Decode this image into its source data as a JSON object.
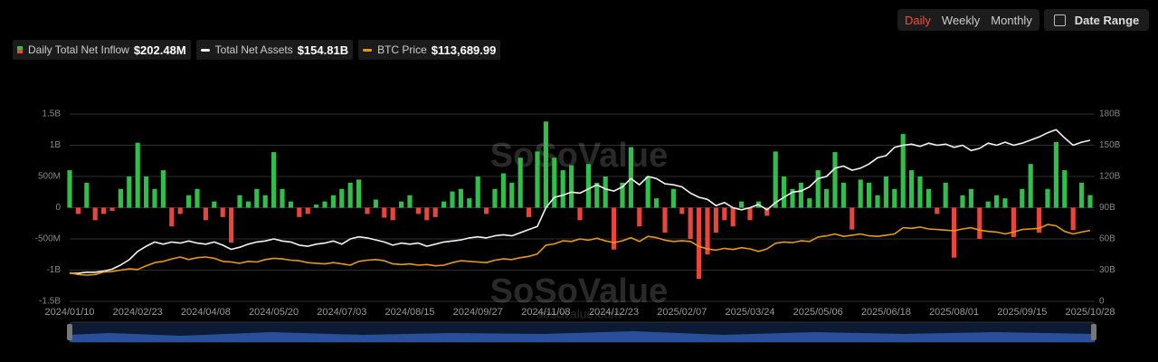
{
  "controls": {
    "periods": [
      "Daily",
      "Weekly",
      "Monthly"
    ],
    "active_period": 0,
    "date_range": "Date Range"
  },
  "watermark": [
    "SoSoValue",
    "SoSoValue",
    "sosovalue.com"
  ],
  "chart_data": {
    "type": "bar-line",
    "categories": [
      "2024/01/10",
      null,
      null,
      null,
      null,
      null,
      null,
      null,
      "2024/02/23",
      null,
      null,
      null,
      null,
      null,
      null,
      null,
      "2024/04/08",
      null,
      null,
      null,
      null,
      null,
      null,
      null,
      "2024/05/20",
      null,
      null,
      null,
      null,
      null,
      null,
      null,
      "2024/07/03",
      null,
      null,
      null,
      null,
      null,
      null,
      null,
      "2024/08/15",
      null,
      null,
      null,
      null,
      null,
      null,
      null,
      "2024/09/27",
      null,
      null,
      null,
      null,
      null,
      null,
      null,
      "2024/11/08",
      null,
      null,
      null,
      null,
      null,
      null,
      null,
      "2024/12/23",
      null,
      null,
      null,
      null,
      null,
      null,
      null,
      "2025/02/07",
      null,
      null,
      null,
      null,
      null,
      null,
      null,
      "2025/03/24",
      null,
      null,
      null,
      null,
      null,
      null,
      null,
      "2025/05/06",
      null,
      null,
      null,
      null,
      null,
      null,
      null,
      "2025/06/18",
      null,
      null,
      null,
      null,
      null,
      null,
      null,
      "2025/08/01",
      null,
      null,
      null,
      null,
      null,
      null,
      null,
      "2025/09/15",
      null,
      null,
      null,
      null,
      null,
      null,
      null,
      "2025/10/28"
    ],
    "ylim": [
      -1500000000.0,
      1500000000.0
    ],
    "yticks": [
      {
        "value": -1500000000.0,
        "label": "-1.5B"
      },
      {
        "value": -1000000000.0,
        "label": "-1B"
      },
      {
        "value": -500000000.0,
        "label": "-500M"
      },
      0,
      {
        "value": 500000000.0,
        "label": "500M"
      },
      {
        "value": 1000000000.0,
        "label": "1B"
      },
      {
        "value": 1500000000.0,
        "label": "1.5B"
      }
    ],
    "y2lim": [
      0,
      180000000000.0
    ],
    "y2ticks": [
      0,
      {
        "value": 30000000000.0,
        "label": "30B"
      },
      {
        "value": 60000000000.0,
        "label": "60B"
      },
      {
        "value": 90000000000.0,
        "label": "90B"
      },
      {
        "value": 120000000000.0,
        "label": "120B"
      },
      {
        "value": 150000000000.0,
        "label": "150B"
      },
      {
        "value": 180000000000.0,
        "label": "180B"
      }
    ],
    "y3lim": [
      0,
      300000
    ],
    "grid": true,
    "series": [
      {
        "name": "Daily Total Net Inflow",
        "latest_label": "$202.48M",
        "type": "bar",
        "axis": "y",
        "color": "#2fbf4a",
        "negative_color": "#e8463a",
        "values": [
          600000000.0,
          -100000000.0,
          400000000.0,
          -200000000.0,
          -100000000.0,
          -50000000.0,
          300000000.0,
          500000000.0,
          1040000000.0,
          500000000.0,
          300000000.0,
          600000000.0,
          -300000000.0,
          -100000000.0,
          200000000.0,
          300000000.0,
          -200000000.0,
          100000000.0,
          -150000000.0,
          -560000000.0,
          200000000.0,
          100000000.0,
          300000000.0,
          200000000.0,
          890000000.0,
          300000000.0,
          100000000.0,
          -150000000.0,
          -100000000.0,
          50000000.0,
          100000000.0,
          200000000.0,
          300000000.0,
          400000000.0,
          450000000.0,
          -100000000.0,
          130000000.0,
          -160000000.0,
          -200000000.0,
          100000000.0,
          200000000.0,
          -100000000.0,
          -200000000.0,
          -150000000.0,
          100000000.0,
          260000000.0,
          300000000.0,
          150000000.0,
          500000000.0,
          -100000000.0,
          300000000.0,
          550000000.0,
          400000000.0,
          800000000.0,
          -150000000.0,
          900000000.0,
          1380000000.0,
          800000000.0,
          600000000.0,
          680000000.0,
          -200000000.0,
          700000000.0,
          400000000.0,
          500000000.0,
          -670000000.0,
          400000000.0,
          970000000.0,
          -300000000.0,
          500000000.0,
          150000000.0,
          -400000000.0,
          300000000.0,
          -100000000.0,
          -500000000.0,
          -1140000000.0,
          -750000000.0,
          -400000000.0,
          -200000000.0,
          -300000000.0,
          100000000.0,
          -200000000.0,
          100000000.0,
          -130000000.0,
          900000000.0,
          500000000.0,
          300000000.0,
          400000000.0,
          150000000.0,
          600000000.0,
          300000000.0,
          890000000.0,
          400000000.0,
          -350000000.0,
          450000000.0,
          400000000.0,
          200000000.0,
          500000000.0,
          300000000.0,
          1180000000.0,
          600000000.0,
          500000000.0,
          300000000.0,
          -100000000.0,
          400000000.0,
          -800000000.0,
          200000000.0,
          300000000.0,
          -500000000.0,
          100000000.0,
          200000000.0,
          150000000.0,
          -470000000.0,
          300000000.0,
          700000000.0,
          -400000000.0,
          300000000.0,
          1050000000.0,
          600000000.0,
          -360000000.0,
          400000000.0,
          202480000.0
        ]
      },
      {
        "name": "Total Net Assets",
        "latest_label": "$154.81B",
        "type": "line",
        "axis": "y2",
        "color": "#f2f2f2",
        "values": [
          27000000000.0,
          27000000000.0,
          28000000000.0,
          28000000000.0,
          29000000000.0,
          31000000000.0,
          35000000000.0,
          40000000000.0,
          48000000000.0,
          53000000000.0,
          57000000000.0,
          55000000000.0,
          57000000000.0,
          56000000000.0,
          58000000000.0,
          56000000000.0,
          55000000000.0,
          57000000000.0,
          54000000000.0,
          50000000000.0,
          52000000000.0,
          55000000000.0,
          57000000000.0,
          58000000000.0,
          60000000000.0,
          58000000000.0,
          57000000000.0,
          54000000000.0,
          53000000000.0,
          55000000000.0,
          56000000000.0,
          58000000000.0,
          55000000000.0,
          60000000000.0,
          62000000000.0,
          61000000000.0,
          59000000000.0,
          57000000000.0,
          54000000000.0,
          56000000000.0,
          55000000000.0,
          56000000000.0,
          53000000000.0,
          55000000000.0,
          57000000000.0,
          58000000000.0,
          59000000000.0,
          61000000000.0,
          62000000000.0,
          61000000000.0,
          63000000000.0,
          64000000000.0,
          63000000000.0,
          66000000000.0,
          69000000000.0,
          72000000000.0,
          90000000000.0,
          100000000000.0,
          102000000000.0,
          105000000000.0,
          104000000000.0,
          108000000000.0,
          112000000000.0,
          108000000000.0,
          106000000000.0,
          110000000000.0,
          118000000000.0,
          112000000000.0,
          120000000000.0,
          118000000000.0,
          113000000000.0,
          112000000000.0,
          110000000000.0,
          104000000000.0,
          100000000000.0,
          98000000000.0,
          92000000000.0,
          95000000000.0,
          90000000000.0,
          88000000000.0,
          90000000000.0,
          93000000000.0,
          88000000000.0,
          95000000000.0,
          100000000000.0,
          105000000000.0,
          106000000000.0,
          110000000000.0,
          118000000000.0,
          120000000000.0,
          128000000000.0,
          130000000000.0,
          126000000000.0,
          128000000000.0,
          132000000000.0,
          138000000000.0,
          140000000000.0,
          148000000000.0,
          150000000000.0,
          151000000000.0,
          149000000000.0,
          152000000000.0,
          150000000000.0,
          151000000000.0,
          148000000000.0,
          150000000000.0,
          145000000000.0,
          147000000000.0,
          152000000000.0,
          150000000000.0,
          153000000000.0,
          150000000000.0,
          152000000000.0,
          155000000000.0,
          158000000000.0,
          162000000000.0,
          165000000000.0,
          157000000000.0,
          150000000000.0,
          153000000000.0,
          154810000000.0
        ]
      },
      {
        "name": "BTC Price",
        "latest_label": "$113,689.99",
        "type": "line",
        "axis": "y3",
        "color": "#e59a12",
        "values": [
          46000,
          43000,
          42000,
          43000,
          47000,
          48000,
          50000,
          52000,
          51000,
          57000,
          62000,
          64000,
          68000,
          71000,
          67000,
          70000,
          71000,
          69000,
          64000,
          63000,
          61000,
          64000,
          63000,
          67000,
          69000,
          68000,
          66000,
          65000,
          62000,
          61000,
          60000,
          62000,
          60000,
          58000,
          64000,
          66000,
          67000,
          65000,
          60000,
          59000,
          60000,
          58000,
          59000,
          57000,
          58000,
          62000,
          65000,
          64000,
          63000,
          62000,
          66000,
          68000,
          67000,
          70000,
          72000,
          76000,
          90000,
          92000,
          97000,
          96000,
          100000,
          98000,
          101000,
          97000,
          94000,
          97000,
          102000,
          96000,
          104000,
          102000,
          98000,
          96000,
          97000,
          96000,
          88000,
          84000,
          82000,
          85000,
          83000,
          86000,
          84000,
          80000,
          84000,
          93000,
          95000,
          94000,
          97000,
          96000,
          103000,
          105000,
          108000,
          104000,
          106000,
          108000,
          105000,
          104000,
          106000,
          108000,
          118000,
          117000,
          119000,
          116000,
          115000,
          114000,
          113000,
          116000,
          118000,
          114000,
          112000,
          111000,
          108000,
          111000,
          115000,
          116000,
          117000,
          123000,
          121000,
          112000,
          108000,
          111000,
          113689.99
        ]
      }
    ]
  }
}
